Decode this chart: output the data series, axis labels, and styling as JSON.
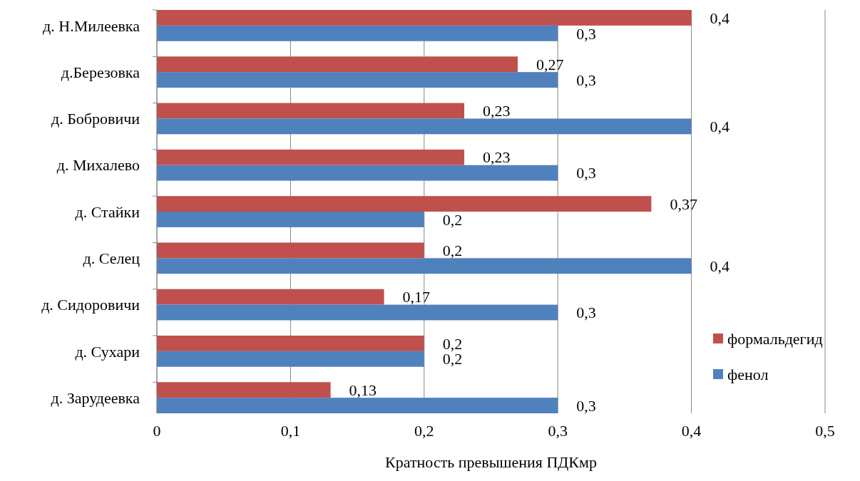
{
  "chart_data": {
    "type": "bar",
    "orientation": "horizontal",
    "xlabel": "Кратность превышения ПДКмр",
    "categories": [
      "д. Н.Милеевка",
      "д.Березовка",
      "д. Бобровичи",
      "д. Михалево",
      "д. Стайки",
      "д. Селец",
      "д. Сидоровичи",
      "д. Сухари",
      "д. Зарудеевка"
    ],
    "series": [
      {
        "name": "формальдегид",
        "color": "#c0504d",
        "values": [
          0.4,
          0.27,
          0.23,
          0.23,
          0.37,
          0.2,
          0.17,
          0.2,
          0.13
        ],
        "value_labels": [
          "0,4",
          "0,27",
          "0,23",
          "0,23",
          "0,37",
          "0,2",
          "0,17",
          "0,2",
          "0,13"
        ]
      },
      {
        "name": "фенол",
        "color": "#4f81bd",
        "values": [
          0.3,
          0.3,
          0.4,
          0.3,
          0.2,
          0.4,
          0.3,
          0.2,
          0.3
        ],
        "value_labels": [
          "0,3",
          "0,3",
          "0,4",
          "0,3",
          "0,2",
          "0,4",
          "0,3",
          "0,2",
          "0,3"
        ]
      }
    ],
    "xlim": [
      0,
      0.5
    ],
    "xticks": [
      0,
      {
        "value": 0.1,
        "label": "0,1"
      },
      {
        "value": 0.2,
        "label": "0,2"
      },
      {
        "value": 0.3,
        "label": "0,3"
      },
      {
        "value": 0.4,
        "label": "0,4"
      },
      {
        "value": 0.5,
        "label": "0,5"
      }
    ],
    "grid": "x",
    "legend": "right"
  }
}
